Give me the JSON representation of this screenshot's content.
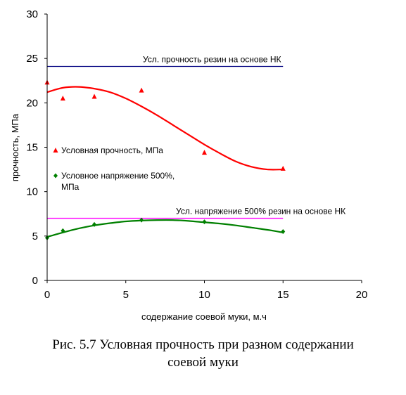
{
  "chart_data": {
    "type": "scatter",
    "xlabel": "содержание соевой муки, м.ч",
    "ylabel": "прочность, МПа",
    "xlim": [
      0,
      20
    ],
    "ylim": [
      0,
      30
    ],
    "x_ticks": [
      "0",
      "5",
      "10",
      "15",
      "20"
    ],
    "y_ticks": [
      "0",
      "5",
      "10",
      "15",
      "20",
      "25",
      "30"
    ],
    "grid": false,
    "legend_position": "left-inside",
    "series": [
      {
        "name": "Условная прочность, МПа",
        "marker": "triangle",
        "color": "#ff0000",
        "points": [
          [
            0,
            22.3
          ],
          [
            1,
            20.5
          ],
          [
            3,
            20.7
          ],
          [
            6,
            21.4
          ],
          [
            10,
            14.4
          ],
          [
            15,
            12.6
          ]
        ],
        "trend": [
          [
            0,
            21.2
          ],
          [
            1,
            21.7
          ],
          [
            2,
            21.8
          ],
          [
            3,
            21.6
          ],
          [
            4,
            21.2
          ],
          [
            5,
            20.5
          ],
          [
            6,
            19.6
          ],
          [
            7,
            18.6
          ],
          [
            8,
            17.5
          ],
          [
            9,
            16.4
          ],
          [
            10,
            15.3
          ],
          [
            11,
            14.3
          ],
          [
            12,
            13.4
          ],
          [
            13,
            12.8
          ],
          [
            14,
            12.5
          ],
          [
            15,
            12.5
          ]
        ]
      },
      {
        "name": "Условное напряжение 500%, МПа",
        "marker": "diamond",
        "color": "#008000",
        "points": [
          [
            0,
            4.8
          ],
          [
            1,
            5.6
          ],
          [
            3,
            6.3
          ],
          [
            6,
            6.8
          ],
          [
            10,
            6.6
          ],
          [
            15,
            5.5
          ]
        ],
        "trend": [
          [
            0,
            4.9
          ],
          [
            1,
            5.4
          ],
          [
            2,
            5.85
          ],
          [
            3,
            6.2
          ],
          [
            4,
            6.45
          ],
          [
            5,
            6.65
          ],
          [
            6,
            6.75
          ],
          [
            7,
            6.8
          ],
          [
            8,
            6.8
          ],
          [
            9,
            6.7
          ],
          [
            10,
            6.55
          ],
          [
            11,
            6.4
          ],
          [
            12,
            6.2
          ],
          [
            13,
            5.95
          ],
          [
            14,
            5.7
          ],
          [
            15,
            5.4
          ]
        ]
      }
    ],
    "reference_lines": [
      {
        "label": "Усл. прочность резин на основе НК",
        "y": 24.1,
        "x": [
          0,
          15
        ],
        "color": "#000080"
      },
      {
        "label": "Усл. напряжение 500% резин на основе НК",
        "y": 7.0,
        "x": [
          0,
          15
        ],
        "color": "#ff00ff"
      }
    ]
  },
  "caption": {
    "line1": "Рис. 5.7 Условная прочность при разном содержании",
    "line2": "соевой муки"
  }
}
